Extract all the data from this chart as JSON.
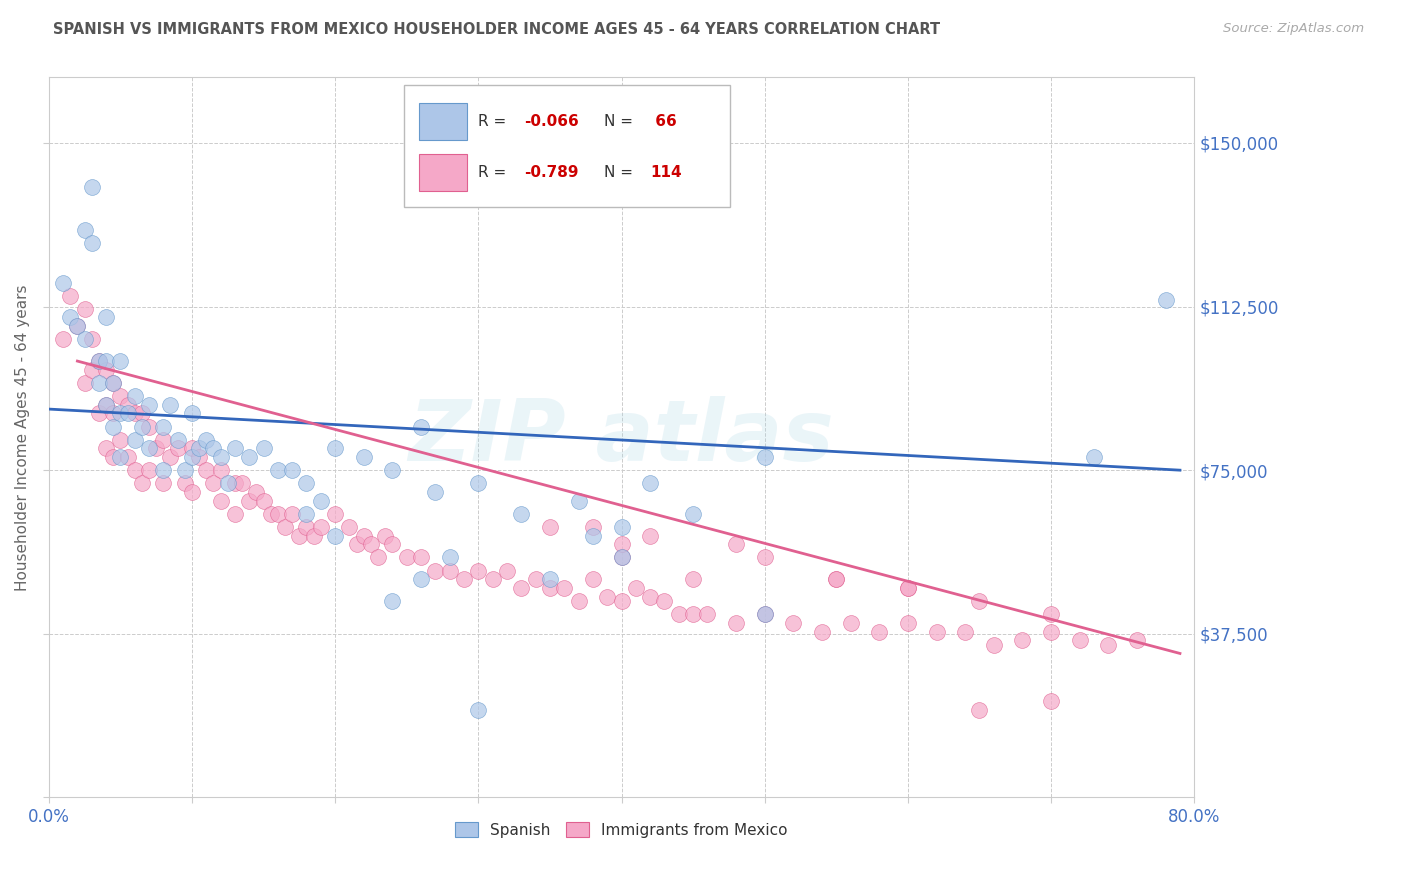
{
  "title": "SPANISH VS IMMIGRANTS FROM MEXICO HOUSEHOLDER INCOME AGES 45 - 64 YEARS CORRELATION CHART",
  "source": "Source: ZipAtlas.com",
  "ylabel": "Householder Income Ages 45 - 64 years",
  "xlim": [
    0.0,
    0.8
  ],
  "ylim": [
    0,
    165000
  ],
  "yticks": [
    0,
    37500,
    75000,
    112500,
    150000
  ],
  "ytick_labels_right": [
    "",
    "$37,500",
    "$75,000",
    "$112,500",
    "$150,000"
  ],
  "color_spanish_fill": "#adc6e8",
  "color_spanish_edge": "#6699cc",
  "color_mexico_fill": "#f5a8c8",
  "color_mexico_edge": "#e06090",
  "color_line_spanish": "#3366bb",
  "color_line_mexico": "#e06090",
  "color_tick_labels": "#4472c4",
  "color_title": "#555555",
  "background_color": "#ffffff",
  "grid_color": "#cccccc",
  "sp_line_x0": 0.0,
  "sp_line_y0": 89000,
  "sp_line_x1": 0.79,
  "sp_line_y1": 75000,
  "mx_line_x0": 0.02,
  "mx_line_y0": 100000,
  "mx_line_x1": 0.79,
  "mx_line_y1": 33000,
  "spanish_x": [
    0.01,
    0.015,
    0.02,
    0.025,
    0.025,
    0.03,
    0.03,
    0.035,
    0.035,
    0.04,
    0.04,
    0.04,
    0.045,
    0.045,
    0.05,
    0.05,
    0.05,
    0.055,
    0.06,
    0.06,
    0.065,
    0.07,
    0.07,
    0.08,
    0.08,
    0.085,
    0.09,
    0.095,
    0.1,
    0.1,
    0.105,
    0.11,
    0.115,
    0.12,
    0.125,
    0.13,
    0.14,
    0.15,
    0.16,
    0.17,
    0.18,
    0.19,
    0.2,
    0.22,
    0.24,
    0.26,
    0.27,
    0.3,
    0.33,
    0.37,
    0.38,
    0.4,
    0.42,
    0.45,
    0.5,
    0.5,
    0.73,
    0.78,
    0.24,
    0.26,
    0.35,
    0.4,
    0.18,
    0.2,
    0.28,
    0.3
  ],
  "spanish_y": [
    118000,
    110000,
    108000,
    105000,
    130000,
    140000,
    127000,
    100000,
    95000,
    110000,
    100000,
    90000,
    95000,
    85000,
    100000,
    88000,
    78000,
    88000,
    92000,
    82000,
    85000,
    90000,
    80000,
    85000,
    75000,
    90000,
    82000,
    75000,
    88000,
    78000,
    80000,
    82000,
    80000,
    78000,
    72000,
    80000,
    78000,
    80000,
    75000,
    75000,
    72000,
    68000,
    80000,
    78000,
    75000,
    85000,
    70000,
    72000,
    65000,
    68000,
    60000,
    62000,
    72000,
    65000,
    78000,
    42000,
    78000,
    114000,
    45000,
    50000,
    50000,
    55000,
    65000,
    60000,
    55000,
    20000
  ],
  "mexico_x": [
    0.01,
    0.015,
    0.02,
    0.025,
    0.025,
    0.03,
    0.03,
    0.035,
    0.035,
    0.04,
    0.04,
    0.04,
    0.045,
    0.045,
    0.045,
    0.05,
    0.05,
    0.055,
    0.055,
    0.06,
    0.06,
    0.065,
    0.065,
    0.07,
    0.07,
    0.075,
    0.08,
    0.08,
    0.085,
    0.09,
    0.095,
    0.1,
    0.1,
    0.105,
    0.11,
    0.115,
    0.12,
    0.12,
    0.13,
    0.13,
    0.135,
    0.14,
    0.145,
    0.15,
    0.155,
    0.16,
    0.165,
    0.17,
    0.175,
    0.18,
    0.185,
    0.19,
    0.2,
    0.21,
    0.215,
    0.22,
    0.225,
    0.23,
    0.235,
    0.24,
    0.25,
    0.26,
    0.27,
    0.28,
    0.29,
    0.3,
    0.31,
    0.32,
    0.33,
    0.34,
    0.35,
    0.36,
    0.37,
    0.38,
    0.39,
    0.4,
    0.41,
    0.42,
    0.43,
    0.44,
    0.45,
    0.46,
    0.48,
    0.5,
    0.52,
    0.54,
    0.56,
    0.58,
    0.6,
    0.62,
    0.64,
    0.66,
    0.68,
    0.7,
    0.72,
    0.74,
    0.76,
    0.4,
    0.45,
    0.5,
    0.55,
    0.6,
    0.38,
    0.42,
    0.48,
    0.55,
    0.6,
    0.65,
    0.7,
    0.35,
    0.4,
    0.65,
    0.7
  ],
  "mexico_y": [
    105000,
    115000,
    108000,
    112000,
    95000,
    105000,
    98000,
    100000,
    88000,
    98000,
    90000,
    80000,
    95000,
    88000,
    78000,
    92000,
    82000,
    90000,
    78000,
    88000,
    75000,
    88000,
    72000,
    85000,
    75000,
    80000,
    82000,
    72000,
    78000,
    80000,
    72000,
    80000,
    70000,
    78000,
    75000,
    72000,
    75000,
    68000,
    72000,
    65000,
    72000,
    68000,
    70000,
    68000,
    65000,
    65000,
    62000,
    65000,
    60000,
    62000,
    60000,
    62000,
    65000,
    62000,
    58000,
    60000,
    58000,
    55000,
    60000,
    58000,
    55000,
    55000,
    52000,
    52000,
    50000,
    52000,
    50000,
    52000,
    48000,
    50000,
    48000,
    48000,
    45000,
    50000,
    46000,
    45000,
    48000,
    46000,
    45000,
    42000,
    42000,
    42000,
    40000,
    42000,
    40000,
    38000,
    40000,
    38000,
    40000,
    38000,
    38000,
    35000,
    36000,
    38000,
    36000,
    35000,
    36000,
    55000,
    50000,
    55000,
    50000,
    48000,
    62000,
    60000,
    58000,
    50000,
    48000,
    45000,
    42000,
    62000,
    58000,
    20000,
    22000
  ]
}
